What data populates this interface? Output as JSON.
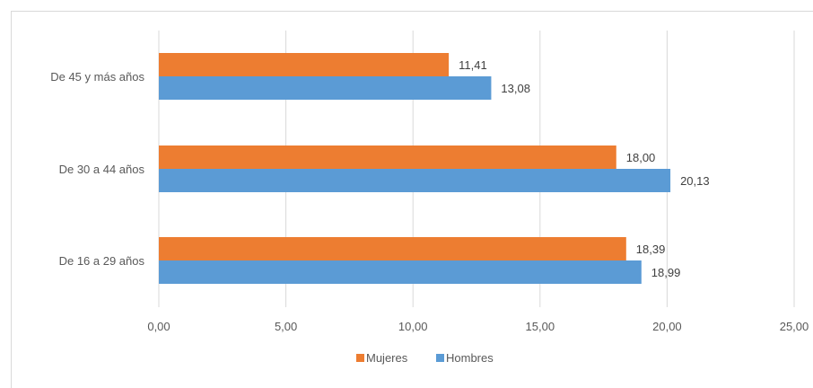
{
  "chart_data": {
    "type": "bar",
    "orientation": "horizontal",
    "categories": [
      "De 16 a 29 años",
      "De 30 a 44 años",
      "De 45 y más años"
    ],
    "series": [
      {
        "name": "Mujeres",
        "color": "#ed7d31",
        "values": [
          18.39,
          18.0,
          11.41
        ],
        "labels": [
          "18,39",
          "18,00",
          "11,41"
        ]
      },
      {
        "name": "Hombres",
        "color": "#5b9bd5",
        "values": [
          18.99,
          20.13,
          13.08
        ],
        "labels": [
          "18,99",
          "20,13",
          "13,08"
        ]
      }
    ],
    "xlim": [
      0,
      25
    ],
    "xticks": [
      0,
      5,
      10,
      15,
      20,
      25
    ],
    "xtick_labels": [
      "0,00",
      "5,00",
      "10,00",
      "15,00",
      "20,00",
      "25,00"
    ],
    "grid": true,
    "legend_position": "bottom",
    "title": "",
    "xlabel": "",
    "ylabel": ""
  }
}
